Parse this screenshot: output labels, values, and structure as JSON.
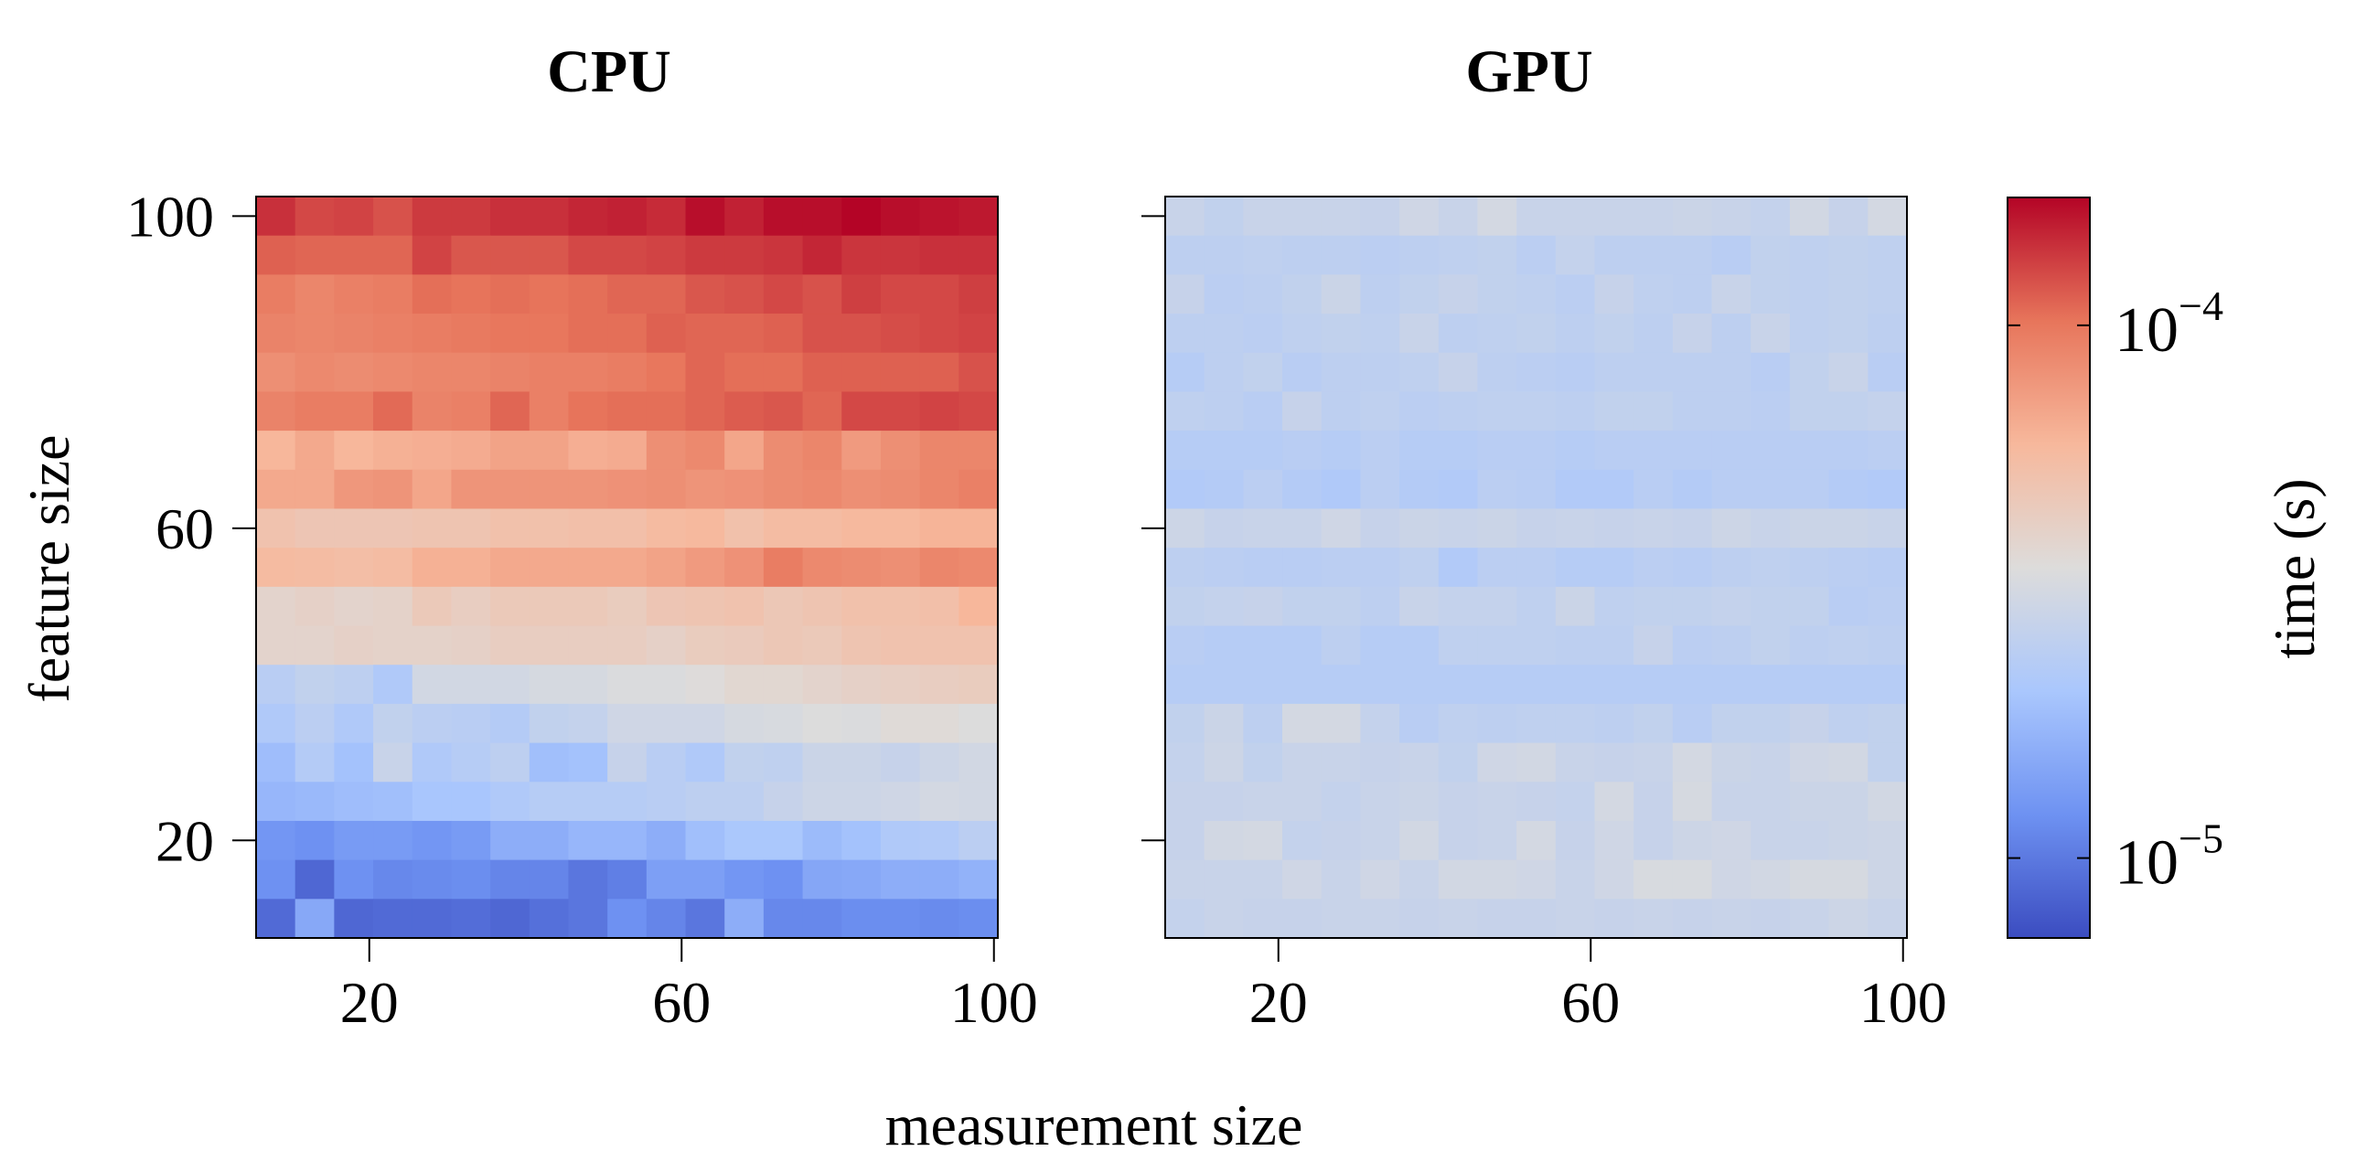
{
  "chart_data": [
    {
      "type": "heatmap",
      "title": "CPU",
      "xlabel": "measurement size",
      "ylabel": "feature size",
      "x_ticks": [
        20,
        60,
        100
      ],
      "y_ticks": [
        20,
        60,
        100
      ],
      "x": [
        8,
        13,
        18,
        23,
        28,
        33,
        38,
        43,
        48,
        53,
        58,
        63,
        68,
        73,
        78,
        83,
        88,
        93,
        98
      ],
      "y": [
        100,
        95,
        90,
        85,
        80,
        75,
        70,
        65,
        60,
        55,
        50,
        45,
        40,
        35,
        30,
        25,
        20,
        15,
        10
      ],
      "z_log10": [
        [
          -3.85,
          -3.9,
          -3.89,
          -3.92,
          -3.87,
          -3.87,
          -3.85,
          -3.85,
          -3.83,
          -3.82,
          -3.84,
          -3.78,
          -3.82,
          -3.78,
          -3.78,
          -3.76,
          -3.78,
          -3.79,
          -3.8
        ],
        [
          -3.95,
          -3.96,
          -3.96,
          -3.96,
          -3.89,
          -3.93,
          -3.93,
          -3.93,
          -3.9,
          -3.9,
          -3.89,
          -3.87,
          -3.87,
          -3.86,
          -3.83,
          -3.86,
          -3.86,
          -3.85,
          -3.85
        ],
        [
          -4.02,
          -4.05,
          -4.03,
          -4.02,
          -3.98,
          -3.99,
          -3.98,
          -3.99,
          -3.98,
          -3.96,
          -3.96,
          -3.93,
          -3.92,
          -3.9,
          -3.92,
          -3.88,
          -3.9,
          -3.9,
          -3.88
        ],
        [
          -4.04,
          -4.05,
          -4.04,
          -4.03,
          -4.02,
          -4.01,
          -4.0,
          -4.0,
          -3.98,
          -3.98,
          -3.95,
          -3.96,
          -3.96,
          -3.95,
          -3.92,
          -3.92,
          -3.91,
          -3.9,
          -3.89
        ],
        [
          -4.08,
          -4.06,
          -4.07,
          -4.06,
          -4.05,
          -4.05,
          -4.04,
          -4.03,
          -4.03,
          -4.02,
          -4.0,
          -3.96,
          -3.98,
          -3.98,
          -3.95,
          -3.95,
          -3.95,
          -3.95,
          -3.92
        ],
        [
          -4.04,
          -4.02,
          -4.02,
          -3.97,
          -4.04,
          -4.03,
          -3.96,
          -4.03,
          -3.99,
          -3.98,
          -3.98,
          -3.96,
          -3.94,
          -3.93,
          -3.96,
          -3.9,
          -3.9,
          -3.89,
          -3.9
        ],
        [
          -4.22,
          -4.17,
          -4.22,
          -4.2,
          -4.19,
          -4.18,
          -4.15,
          -4.15,
          -4.19,
          -4.18,
          -4.08,
          -4.06,
          -4.16,
          -4.07,
          -4.05,
          -4.12,
          -4.08,
          -4.05,
          -4.05
        ],
        [
          -4.17,
          -4.17,
          -4.11,
          -4.1,
          -4.16,
          -4.1,
          -4.1,
          -4.1,
          -4.1,
          -4.09,
          -4.08,
          -4.1,
          -4.09,
          -4.07,
          -4.06,
          -4.08,
          -4.07,
          -4.05,
          -4.03
        ],
        [
          -4.29,
          -4.31,
          -4.31,
          -4.31,
          -4.3,
          -4.3,
          -4.28,
          -4.28,
          -4.27,
          -4.27,
          -4.24,
          -4.23,
          -4.28,
          -4.25,
          -4.25,
          -4.23,
          -4.23,
          -4.21,
          -4.21
        ],
        [
          -4.24,
          -4.25,
          -4.26,
          -4.25,
          -4.2,
          -4.2,
          -4.17,
          -4.17,
          -4.17,
          -4.17,
          -4.15,
          -4.12,
          -4.09,
          -4.02,
          -4.06,
          -4.07,
          -4.08,
          -4.05,
          -4.06
        ],
        [
          -4.4,
          -4.38,
          -4.4,
          -4.39,
          -4.33,
          -4.36,
          -4.33,
          -4.33,
          -4.33,
          -4.35,
          -4.31,
          -4.3,
          -4.29,
          -4.32,
          -4.3,
          -4.28,
          -4.28,
          -4.27,
          -4.22
        ],
        [
          -4.4,
          -4.4,
          -4.38,
          -4.39,
          -4.39,
          -4.38,
          -4.36,
          -4.36,
          -4.36,
          -4.36,
          -4.38,
          -4.35,
          -4.34,
          -4.32,
          -4.33,
          -4.3,
          -4.29,
          -4.29,
          -4.29
        ],
        [
          -4.62,
          -4.58,
          -4.6,
          -4.66,
          -4.51,
          -4.51,
          -4.51,
          -4.49,
          -4.49,
          -4.47,
          -4.47,
          -4.45,
          -4.42,
          -4.42,
          -4.4,
          -4.38,
          -4.37,
          -4.36,
          -4.35
        ],
        [
          -4.66,
          -4.61,
          -4.66,
          -4.58,
          -4.61,
          -4.62,
          -4.64,
          -4.58,
          -4.57,
          -4.52,
          -4.52,
          -4.52,
          -4.49,
          -4.48,
          -4.46,
          -4.47,
          -4.44,
          -4.44,
          -4.46
        ],
        [
          -4.73,
          -4.64,
          -4.71,
          -4.55,
          -4.66,
          -4.63,
          -4.6,
          -4.72,
          -4.71,
          -4.56,
          -4.62,
          -4.66,
          -4.58,
          -4.59,
          -4.54,
          -4.54,
          -4.56,
          -4.53,
          -4.51
        ],
        [
          -4.76,
          -4.75,
          -4.73,
          -4.72,
          -4.69,
          -4.69,
          -4.66,
          -4.63,
          -4.63,
          -4.63,
          -4.62,
          -4.6,
          -4.6,
          -4.56,
          -4.53,
          -4.53,
          -4.52,
          -4.5,
          -4.51
        ],
        [
          -4.9,
          -4.92,
          -4.88,
          -4.88,
          -4.9,
          -4.88,
          -4.8,
          -4.8,
          -4.76,
          -4.76,
          -4.8,
          -4.72,
          -4.68,
          -4.68,
          -4.74,
          -4.71,
          -4.66,
          -4.65,
          -4.61
        ],
        [
          -4.92,
          -5.06,
          -4.92,
          -4.95,
          -4.94,
          -4.93,
          -4.96,
          -4.96,
          -5.01,
          -4.98,
          -4.86,
          -4.86,
          -4.9,
          -4.92,
          -4.83,
          -4.82,
          -4.8,
          -4.8,
          -4.78
        ],
        [
          -5.05,
          -4.82,
          -5.06,
          -5.05,
          -5.05,
          -5.04,
          -5.06,
          -5.03,
          -5.01,
          -4.92,
          -4.96,
          -5.01,
          -4.8,
          -4.95,
          -4.95,
          -4.93,
          -4.93,
          -4.94,
          -4.93
        ]
      ]
    },
    {
      "type": "heatmap",
      "title": "GPU",
      "xlabel": "measurement size",
      "ylabel": "feature size",
      "x_ticks": [
        20,
        60,
        100
      ],
      "y_ticks": [
        20,
        60,
        100
      ],
      "x": [
        8,
        13,
        18,
        23,
        28,
        33,
        38,
        43,
        48,
        53,
        58,
        63,
        68,
        73,
        78,
        83,
        88,
        93,
        98
      ],
      "y": [
        100,
        95,
        90,
        85,
        80,
        75,
        70,
        65,
        60,
        55,
        50,
        45,
        40,
        35,
        30,
        25,
        20,
        15,
        10
      ],
      "z_log10": [
        [
          -4.55,
          -4.58,
          -4.55,
          -4.55,
          -4.55,
          -4.56,
          -4.52,
          -4.55,
          -4.5,
          -4.55,
          -4.55,
          -4.55,
          -4.55,
          -4.54,
          -4.55,
          -4.57,
          -4.51,
          -4.56,
          -4.5
        ],
        [
          -4.6,
          -4.6,
          -4.59,
          -4.6,
          -4.6,
          -4.61,
          -4.6,
          -4.59,
          -4.58,
          -4.61,
          -4.57,
          -4.6,
          -4.6,
          -4.6,
          -4.62,
          -4.58,
          -4.59,
          -4.58,
          -4.59
        ],
        [
          -4.56,
          -4.61,
          -4.6,
          -4.58,
          -4.54,
          -4.6,
          -4.58,
          -4.56,
          -4.58,
          -4.59,
          -4.61,
          -4.56,
          -4.59,
          -4.6,
          -4.55,
          -4.58,
          -4.59,
          -4.58,
          -4.59
        ],
        [
          -4.6,
          -4.6,
          -4.61,
          -4.59,
          -4.58,
          -4.59,
          -4.55,
          -4.6,
          -4.59,
          -4.58,
          -4.6,
          -4.58,
          -4.6,
          -4.56,
          -4.6,
          -4.55,
          -4.59,
          -4.58,
          -4.6
        ],
        [
          -4.63,
          -4.6,
          -4.58,
          -4.62,
          -4.6,
          -4.6,
          -4.59,
          -4.56,
          -4.6,
          -4.61,
          -4.62,
          -4.6,
          -4.6,
          -4.6,
          -4.6,
          -4.62,
          -4.58,
          -4.55,
          -4.62
        ],
        [
          -4.59,
          -4.6,
          -4.62,
          -4.56,
          -4.6,
          -4.59,
          -4.61,
          -4.6,
          -4.59,
          -4.59,
          -4.6,
          -4.58,
          -4.58,
          -4.6,
          -4.6,
          -4.61,
          -4.58,
          -4.58,
          -4.57
        ],
        [
          -4.63,
          -4.63,
          -4.63,
          -4.62,
          -4.63,
          -4.61,
          -4.63,
          -4.63,
          -4.62,
          -4.62,
          -4.63,
          -4.62,
          -4.62,
          -4.62,
          -4.62,
          -4.62,
          -4.62,
          -4.62,
          -4.61
        ],
        [
          -4.65,
          -4.64,
          -4.61,
          -4.64,
          -4.66,
          -4.61,
          -4.64,
          -4.65,
          -4.61,
          -4.62,
          -4.65,
          -4.65,
          -4.62,
          -4.64,
          -4.62,
          -4.62,
          -4.62,
          -4.64,
          -4.65
        ],
        [
          -4.53,
          -4.56,
          -4.55,
          -4.55,
          -4.52,
          -4.56,
          -4.54,
          -4.55,
          -4.54,
          -4.56,
          -4.55,
          -4.56,
          -4.55,
          -4.56,
          -4.53,
          -4.55,
          -4.54,
          -4.54,
          -4.55
        ],
        [
          -4.6,
          -4.61,
          -4.62,
          -4.62,
          -4.61,
          -4.61,
          -4.59,
          -4.65,
          -4.61,
          -4.61,
          -4.63,
          -4.63,
          -4.61,
          -4.62,
          -4.6,
          -4.59,
          -4.6,
          -4.61,
          -4.62
        ],
        [
          -4.58,
          -4.57,
          -4.56,
          -4.58,
          -4.58,
          -4.6,
          -4.55,
          -4.57,
          -4.57,
          -4.59,
          -4.54,
          -4.59,
          -4.58,
          -4.58,
          -4.57,
          -4.58,
          -4.58,
          -4.62,
          -4.61
        ],
        [
          -4.62,
          -4.63,
          -4.63,
          -4.63,
          -4.6,
          -4.63,
          -4.63,
          -4.59,
          -4.59,
          -4.59,
          -4.6,
          -4.6,
          -4.56,
          -4.61,
          -4.6,
          -4.58,
          -4.6,
          -4.59,
          -4.6
        ],
        [
          -4.63,
          -4.63,
          -4.63,
          -4.63,
          -4.63,
          -4.63,
          -4.63,
          -4.63,
          -4.63,
          -4.63,
          -4.63,
          -4.63,
          -4.63,
          -4.63,
          -4.63,
          -4.63,
          -4.63,
          -4.63,
          -4.63
        ],
        [
          -4.58,
          -4.54,
          -4.6,
          -4.5,
          -4.5,
          -4.57,
          -4.62,
          -4.59,
          -4.6,
          -4.59,
          -4.59,
          -4.6,
          -4.58,
          -4.62,
          -4.58,
          -4.58,
          -4.56,
          -4.59,
          -4.58
        ],
        [
          -4.57,
          -4.53,
          -4.58,
          -4.55,
          -4.55,
          -4.56,
          -4.55,
          -4.58,
          -4.52,
          -4.51,
          -4.55,
          -4.56,
          -4.55,
          -4.5,
          -4.54,
          -4.55,
          -4.52,
          -4.51,
          -4.58
        ],
        [
          -4.56,
          -4.56,
          -4.55,
          -4.55,
          -4.57,
          -4.55,
          -4.54,
          -4.56,
          -4.55,
          -4.56,
          -4.57,
          -4.5,
          -4.56,
          -4.49,
          -4.55,
          -4.55,
          -4.54,
          -4.54,
          -4.51
        ],
        [
          -4.56,
          -4.51,
          -4.5,
          -4.57,
          -4.56,
          -4.55,
          -4.51,
          -4.56,
          -4.55,
          -4.5,
          -4.56,
          -4.52,
          -4.56,
          -4.53,
          -4.52,
          -4.55,
          -4.55,
          -4.54,
          -4.53
        ],
        [
          -4.55,
          -4.55,
          -4.55,
          -4.52,
          -4.55,
          -4.52,
          -4.55,
          -4.51,
          -4.51,
          -4.52,
          -4.55,
          -4.52,
          -4.48,
          -4.48,
          -4.52,
          -4.51,
          -4.49,
          -4.49,
          -4.53
        ],
        [
          -4.57,
          -4.55,
          -4.56,
          -4.56,
          -4.55,
          -4.55,
          -4.56,
          -4.55,
          -4.56,
          -4.56,
          -4.55,
          -4.56,
          -4.55,
          -4.56,
          -4.55,
          -4.56,
          -4.55,
          -4.53,
          -4.55
        ]
      ]
    }
  ],
  "colorbar": {
    "label": "time (s)",
    "scale": "log",
    "range_log10": [
      -5.15,
      -3.76
    ],
    "ticks": [
      {
        "log10": -4,
        "base": "10",
        "exponent": "−4"
      },
      {
        "log10": -5,
        "base": "10",
        "exponent": "−5"
      }
    ],
    "colormap": "coolwarm",
    "colormap_stops": [
      "#3b4cc0",
      "#6e92f2",
      "#aac7fd",
      "#dddcdb",
      "#f7b89c",
      "#e7755b",
      "#b40426"
    ]
  },
  "shared_xlabel": "measurement size"
}
